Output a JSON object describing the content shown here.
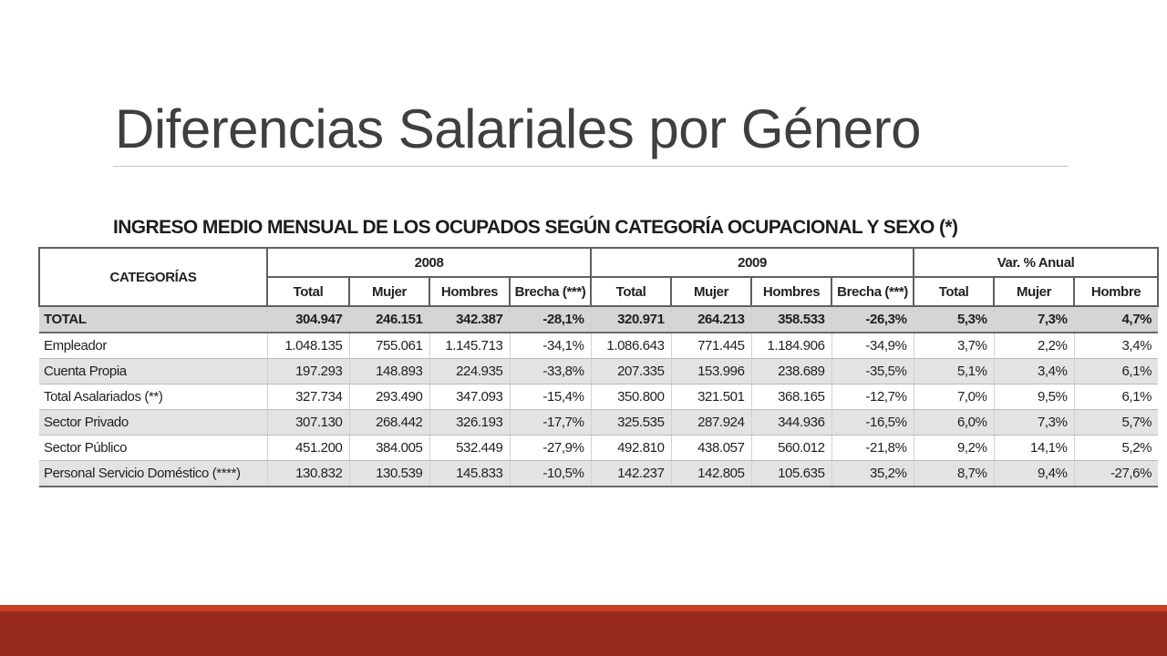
{
  "slide": {
    "title": "Diferencias Salariales por Género"
  },
  "table": {
    "title": "INGRESO MEDIO MENSUAL DE LOS OCUPADOS SEGÚN CATEGORÍA OCUPACIONAL Y SEXO (*)",
    "category_header": "CATEGORÍAS",
    "groups": [
      "2008",
      "2009",
      "Var. % Anual"
    ],
    "subheaders": [
      "Total",
      "Mujer",
      "Hombres",
      "Brecha (***)",
      "Total",
      "Mujer",
      "Hombres",
      "Brecha (***)",
      "Total",
      "Mujer",
      "Hombre"
    ],
    "rows": [
      {
        "label": "TOTAL",
        "cells": [
          "304.947",
          "246.151",
          "342.387",
          "-28,1%",
          "320.971",
          "264.213",
          "358.533",
          "-26,3%",
          "5,3%",
          "7,3%",
          "4,7%"
        ]
      },
      {
        "label": "Empleador",
        "cells": [
          "1.048.135",
          "755.061",
          "1.145.713",
          "-34,1%",
          "1.086.643",
          "771.445",
          "1.184.906",
          "-34,9%",
          "3,7%",
          "2,2%",
          "3,4%"
        ]
      },
      {
        "label": "Cuenta Propia",
        "cells": [
          "197.293",
          "148.893",
          "224.935",
          "-33,8%",
          "207.335",
          "153.996",
          "238.689",
          "-35,5%",
          "5,1%",
          "3,4%",
          "6,1%"
        ]
      },
      {
        "label": "Total Asalariados (**)",
        "cells": [
          "327.734",
          "293.490",
          "347.093",
          "-15,4%",
          "350.800",
          "321.501",
          "368.165",
          "-12,7%",
          "7,0%",
          "9,5%",
          "6,1%"
        ]
      },
      {
        "label": "Sector Privado",
        "cells": [
          "307.130",
          "268.442",
          "326.193",
          "-17,7%",
          "325.535",
          "287.924",
          "344.936",
          "-16,5%",
          "6,0%",
          "7,3%",
          "5,7%"
        ]
      },
      {
        "label": "Sector Público",
        "cells": [
          "451.200",
          "384.005",
          "532.449",
          "-27,9%",
          "492.810",
          "438.057",
          "560.012",
          "-21,8%",
          "9,2%",
          "14,1%",
          "5,2%"
        ]
      },
      {
        "label": "Personal Servicio Doméstico (****)",
        "cells": [
          "130.832",
          "130.539",
          "145.833",
          "-10,5%",
          "142.237",
          "142.805",
          "105.635",
          "35,2%",
          "8,7%",
          "9,4%",
          "-27,6%"
        ]
      }
    ]
  },
  "colors": {
    "title_text": "#3f3f3f",
    "footer_bar": "#992a1e",
    "footer_accent": "#c8401f",
    "row_shade": "#e3e3e3",
    "total_row": "#d5d5d5"
  }
}
